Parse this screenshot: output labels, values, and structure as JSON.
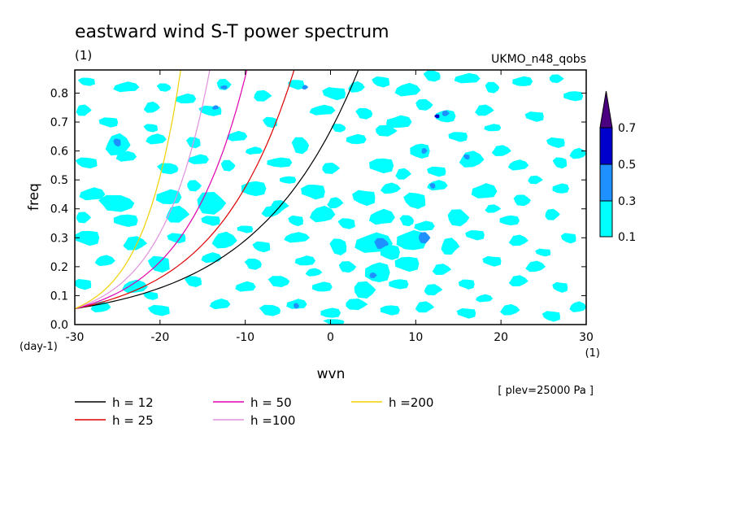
{
  "chart_data": {
    "type": "heatmap",
    "title": "eastward wind S-T power spectrum",
    "title_unit": "(1)",
    "model_label": "UKMO_n48_qobs",
    "xlabel": "wvn",
    "ylabel": "freq",
    "y_unit": "(day-1)",
    "x_unit": "(1)",
    "level_label": "[ plev=25000 Pa ]",
    "xlim": [
      -30,
      30
    ],
    "ylim": [
      0,
      0.88
    ],
    "x_ticks": [
      -30,
      -20,
      -10,
      0,
      10,
      20,
      30
    ],
    "x_tick_labels": [
      "-30",
      "-20",
      "-10",
      "0",
      "10",
      "20",
      "30"
    ],
    "y_ticks": [
      0,
      0.1,
      0.2,
      0.3,
      0.4,
      0.5,
      0.6,
      0.7,
      0.8
    ],
    "y_tick_labels": [
      "0.0",
      "0.1",
      "0.2",
      "0.3",
      "0.4",
      "0.5",
      "0.6",
      "0.7",
      "0.8"
    ],
    "contour_levels": {
      "labels": [
        "0.1",
        "0.3",
        "0.5",
        "0.7"
      ],
      "colors": [
        "#00ffff",
        "#1e90ff",
        "#0000cd",
        "#4b0082"
      ]
    },
    "dispersion_curves": [
      {
        "name": "h = 12",
        "h": 12,
        "color": "#000000"
      },
      {
        "name": "h = 25",
        "h": 25,
        "color": "#e00000"
      },
      {
        "name": "h = 50",
        "h": 50,
        "color": "#e000b0"
      },
      {
        "name": "h =100",
        "h": 100,
        "color": "#e090e0"
      },
      {
        "name": "h =200",
        "h": 200,
        "color": "#f0d000"
      }
    ],
    "contour_blobs": [
      [
        -28.5,
        0.84,
        1.2,
        0.015,
        0
      ],
      [
        -24,
        0.82,
        1.5,
        0.02,
        0
      ],
      [
        -19.5,
        0.82,
        1,
        0.015,
        0
      ],
      [
        -17,
        0.78,
        1.2,
        0.02,
        0
      ],
      [
        -12.5,
        0.83,
        1,
        0.02,
        0
      ],
      [
        -12.5,
        0.82,
        0.4,
        0.008,
        1
      ],
      [
        -8,
        0.79,
        1.2,
        0.02,
        0
      ],
      [
        -4,
        0.83,
        1,
        0.02,
        0
      ],
      [
        -3,
        0.82,
        0.4,
        0.008,
        1
      ],
      [
        0.5,
        0.8,
        1.5,
        0.025,
        0
      ],
      [
        3,
        0.82,
        1,
        0.02,
        0
      ],
      [
        6,
        0.84,
        1.2,
        0.02,
        0
      ],
      [
        9,
        0.81,
        1.5,
        0.025,
        0
      ],
      [
        12,
        0.86,
        1.2,
        0.02,
        0
      ],
      [
        16,
        0.85,
        1.5,
        0.02,
        0
      ],
      [
        19,
        0.82,
        1,
        0.02,
        0
      ],
      [
        22.5,
        0.84,
        1.2,
        0.02,
        0
      ],
      [
        26.5,
        0.85,
        1,
        0.015,
        0
      ],
      [
        28.5,
        0.79,
        1.2,
        0.02,
        0
      ],
      [
        -29,
        0.74,
        1,
        0.02,
        0
      ],
      [
        -26,
        0.7,
        1.2,
        0.02,
        0
      ],
      [
        -21,
        0.75,
        1,
        0.02,
        0
      ],
      [
        -14,
        0.74,
        1.5,
        0.02,
        0
      ],
      [
        -13.5,
        0.75,
        0.4,
        0.008,
        1
      ],
      [
        -7,
        0.7,
        1,
        0.02,
        0
      ],
      [
        -1,
        0.74,
        1.5,
        0.02,
        0
      ],
      [
        4,
        0.73,
        1.2,
        0.02,
        0
      ],
      [
        8,
        0.7,
        1.5,
        0.025,
        0
      ],
      [
        11,
        0.76,
        1.2,
        0.02,
        0
      ],
      [
        13.5,
        0.72,
        1.2,
        0.025,
        0
      ],
      [
        13.5,
        0.73,
        0.5,
        0.01,
        1
      ],
      [
        12.5,
        0.72,
        0.3,
        0.008,
        2
      ],
      [
        18,
        0.74,
        1.2,
        0.02,
        0
      ],
      [
        24,
        0.72,
        1.2,
        0.02,
        0
      ],
      [
        -25,
        0.62,
        1.5,
        0.04,
        0
      ],
      [
        -25,
        0.63,
        0.5,
        0.015,
        1
      ],
      [
        -20.5,
        0.64,
        1.2,
        0.02,
        0
      ],
      [
        -16,
        0.63,
        1,
        0.02,
        0
      ],
      [
        -11,
        0.65,
        1.2,
        0.02,
        0
      ],
      [
        -3.5,
        0.62,
        1.2,
        0.03,
        0
      ],
      [
        3,
        0.64,
        1.2,
        0.02,
        0
      ],
      [
        6.5,
        0.67,
        1.5,
        0.02,
        0
      ],
      [
        10.5,
        0.6,
        1.2,
        0.03,
        0
      ],
      [
        11,
        0.6,
        0.4,
        0.01,
        1
      ],
      [
        15,
        0.65,
        1.2,
        0.02,
        0
      ],
      [
        20,
        0.6,
        1.2,
        0.02,
        0
      ],
      [
        26.5,
        0.63,
        1.2,
        0.02,
        0
      ],
      [
        29,
        0.59,
        1,
        0.02,
        0
      ],
      [
        -28.5,
        0.56,
        1.5,
        0.02,
        0
      ],
      [
        -24,
        0.58,
        1.2,
        0.02,
        0
      ],
      [
        -19,
        0.54,
        1.5,
        0.02,
        0
      ],
      [
        -15.5,
        0.57,
        1.2,
        0.02,
        0
      ],
      [
        -12,
        0.55,
        1,
        0.02,
        0
      ],
      [
        -6,
        0.56,
        1.5,
        0.02,
        0
      ],
      [
        0,
        0.54,
        1.2,
        0.02,
        0
      ],
      [
        6,
        0.55,
        1.5,
        0.03,
        0
      ],
      [
        8.5,
        0.52,
        1,
        0.02,
        0
      ],
      [
        12.5,
        0.53,
        1.2,
        0.02,
        0
      ],
      [
        16.5,
        0.57,
        1.5,
        0.03,
        0
      ],
      [
        16,
        0.58,
        0.4,
        0.01,
        1
      ],
      [
        22,
        0.55,
        1.2,
        0.02,
        0
      ],
      [
        27,
        0.56,
        1,
        0.02,
        0
      ],
      [
        -28,
        0.45,
        1.5,
        0.025,
        0
      ],
      [
        -25,
        0.42,
        2.5,
        0.03,
        0
      ],
      [
        -19,
        0.44,
        1.5,
        0.03,
        0
      ],
      [
        -14,
        0.42,
        2,
        0.04,
        0
      ],
      [
        -9,
        0.47,
        1.5,
        0.03,
        0
      ],
      [
        -6,
        0.41,
        1.2,
        0.02,
        0
      ],
      [
        -2,
        0.46,
        1.5,
        0.03,
        0
      ],
      [
        0.5,
        0.42,
        1,
        0.02,
        0
      ],
      [
        4,
        0.44,
        1.5,
        0.03,
        0
      ],
      [
        7,
        0.47,
        1.2,
        0.02,
        0
      ],
      [
        10,
        0.43,
        1.5,
        0.03,
        0
      ],
      [
        12.5,
        0.48,
        1.2,
        0.02,
        0
      ],
      [
        12,
        0.48,
        0.4,
        0.01,
        1
      ],
      [
        18,
        0.46,
        1.5,
        0.03,
        0
      ],
      [
        22.5,
        0.43,
        1.2,
        0.02,
        0
      ],
      [
        27,
        0.47,
        1,
        0.02,
        0
      ],
      [
        -29,
        0.37,
        1,
        0.02,
        0
      ],
      [
        -24,
        0.36,
        1.5,
        0.025,
        0
      ],
      [
        -18,
        0.38,
        1.5,
        0.03,
        0
      ],
      [
        -14,
        0.36,
        1.2,
        0.02,
        0
      ],
      [
        -7,
        0.39,
        1.2,
        0.02,
        0
      ],
      [
        -4,
        0.36,
        1,
        0.02,
        0
      ],
      [
        -1,
        0.38,
        1.5,
        0.03,
        0
      ],
      [
        2,
        0.35,
        1.2,
        0.02,
        0
      ],
      [
        6,
        0.37,
        1.5,
        0.03,
        0
      ],
      [
        9,
        0.36,
        1,
        0.02,
        0
      ],
      [
        11,
        0.34,
        1.2,
        0.02,
        0
      ],
      [
        15,
        0.37,
        1.5,
        0.03,
        0
      ],
      [
        21,
        0.36,
        1.2,
        0.02,
        0
      ],
      [
        26,
        0.38,
        1,
        0.02,
        0
      ],
      [
        -28.5,
        0.3,
        1.5,
        0.03,
        0
      ],
      [
        -23,
        0.28,
        1.5,
        0.025,
        0
      ],
      [
        -18,
        0.3,
        1.2,
        0.02,
        0
      ],
      [
        -12.5,
        0.29,
        1.5,
        0.03,
        0
      ],
      [
        -8,
        0.27,
        1.2,
        0.02,
        0
      ],
      [
        -4,
        0.3,
        1.5,
        0.02,
        0
      ],
      [
        1,
        0.27,
        1.2,
        0.03,
        0
      ],
      [
        5,
        0.28,
        2.2,
        0.04,
        0
      ],
      [
        6,
        0.28,
        1,
        0.02,
        1
      ],
      [
        9.5,
        0.29,
        1.8,
        0.04,
        0
      ],
      [
        11,
        0.3,
        0.8,
        0.02,
        1
      ],
      [
        7,
        0.25,
        1.2,
        0.03,
        0
      ],
      [
        14,
        0.27,
        1.2,
        0.03,
        0
      ],
      [
        17,
        0.31,
        1.2,
        0.02,
        0
      ],
      [
        22,
        0.29,
        1.2,
        0.02,
        0
      ],
      [
        28,
        0.3,
        1,
        0.02,
        0
      ],
      [
        -26.5,
        0.22,
        1.2,
        0.02,
        0
      ],
      [
        -20,
        0.21,
        1.5,
        0.03,
        0
      ],
      [
        -14,
        0.23,
        1.2,
        0.02,
        0
      ],
      [
        -9,
        0.21,
        1.2,
        0.02,
        0
      ],
      [
        -3,
        0.22,
        1.2,
        0.02,
        0
      ],
      [
        2,
        0.2,
        1.2,
        0.02,
        0
      ],
      [
        5.5,
        0.18,
        1.5,
        0.04,
        0
      ],
      [
        5,
        0.17,
        0.5,
        0.01,
        1
      ],
      [
        9,
        0.21,
        1.5,
        0.03,
        0
      ],
      [
        13,
        0.19,
        1.2,
        0.02,
        0
      ],
      [
        19,
        0.22,
        1.2,
        0.02,
        0
      ],
      [
        24,
        0.2,
        1.2,
        0.02,
        0
      ],
      [
        -29,
        0.14,
        1.2,
        0.02,
        0
      ],
      [
        -23,
        0.13,
        1.5,
        0.025,
        0
      ],
      [
        -16,
        0.15,
        1.2,
        0.02,
        0
      ],
      [
        -10,
        0.13,
        1.2,
        0.02,
        0
      ],
      [
        -6,
        0.15,
        1.5,
        0.02,
        0
      ],
      [
        -1,
        0.13,
        1.2,
        0.02,
        0
      ],
      [
        4,
        0.12,
        1.5,
        0.03,
        0
      ],
      [
        8,
        0.14,
        1.2,
        0.02,
        0
      ],
      [
        12,
        0.12,
        1.2,
        0.02,
        0
      ],
      [
        16,
        0.14,
        1,
        0.02,
        0
      ],
      [
        22,
        0.15,
        1.2,
        0.02,
        0
      ],
      [
        27,
        0.13,
        1,
        0.02,
        0
      ],
      [
        -27,
        0.06,
        1.2,
        0.02,
        0
      ],
      [
        -20,
        0.05,
        1.5,
        0.02,
        0
      ],
      [
        -13,
        0.07,
        1.2,
        0.02,
        0
      ],
      [
        -7,
        0.05,
        1.5,
        0.02,
        0
      ],
      [
        -4,
        0.07,
        1.2,
        0.02,
        0
      ],
      [
        -4,
        0.065,
        0.4,
        0.01,
        1
      ],
      [
        0,
        0.04,
        1.2,
        0.02,
        0
      ],
      [
        3,
        0.07,
        1.5,
        0.02,
        0
      ],
      [
        7,
        0.05,
        1.2,
        0.02,
        0
      ],
      [
        11,
        0.06,
        1.2,
        0.02,
        0
      ],
      [
        16,
        0.04,
        1.2,
        0.02,
        0
      ],
      [
        21,
        0.05,
        1.2,
        0.02,
        0
      ],
      [
        26,
        0.03,
        1.2,
        0.02,
        0
      ],
      [
        29,
        0.06,
        1,
        0.02,
        0
      ],
      [
        -21,
        0.68,
        1,
        0.015,
        0
      ],
      [
        -9,
        0.6,
        1,
        0.015,
        0
      ],
      [
        1,
        0.68,
        1,
        0.015,
        0
      ],
      [
        19,
        0.68,
        1,
        0.015,
        0
      ],
      [
        -16,
        0.48,
        1,
        0.02,
        0
      ],
      [
        -5,
        0.5,
        1,
        0.015,
        0
      ],
      [
        24,
        0.5,
        1,
        0.015,
        0
      ],
      [
        -10,
        0.33,
        1,
        0.015,
        0
      ],
      [
        19,
        0.4,
        1,
        0.015,
        0
      ],
      [
        25,
        0.25,
        1,
        0.015,
        0
      ],
      [
        -2,
        0.18,
        1,
        0.015,
        0
      ],
      [
        -21,
        0.1,
        1,
        0.015,
        0
      ],
      [
        18,
        0.09,
        1,
        0.015,
        0
      ],
      [
        0.5,
        0.01,
        1.5,
        0.01,
        0
      ]
    ]
  }
}
